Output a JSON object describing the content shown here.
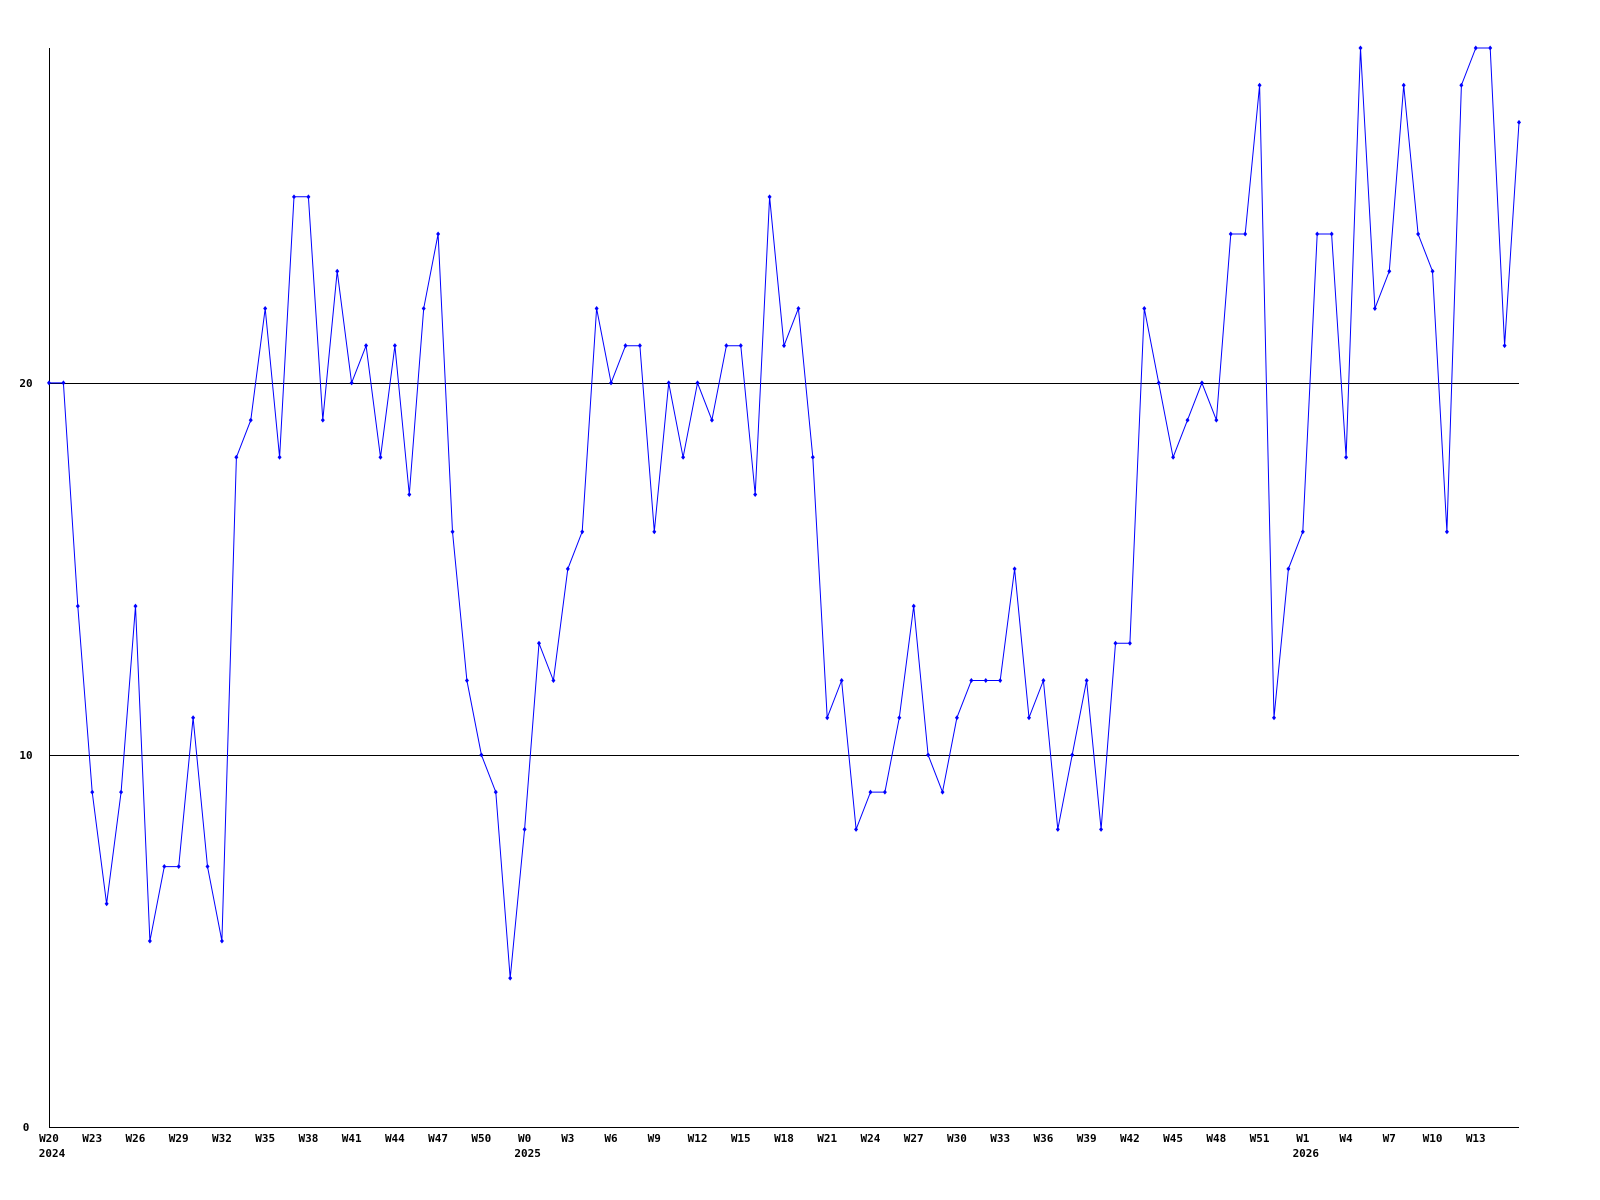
{
  "chart_data": {
    "type": "line",
    "categories": [
      "W20",
      null,
      null,
      "W23",
      null,
      null,
      "W26",
      null,
      null,
      "W29",
      null,
      null,
      "W32",
      null,
      null,
      "W35",
      null,
      null,
      "W38",
      null,
      null,
      "W41",
      null,
      null,
      "W44",
      null,
      null,
      "W47",
      null,
      null,
      "W50",
      null,
      null,
      "W0",
      null,
      null,
      "W3",
      null,
      null,
      "W6",
      null,
      null,
      "W9",
      null,
      null,
      "W12",
      null,
      null,
      "W15",
      null,
      null,
      "W18",
      null,
      null,
      "W21",
      null,
      null,
      "W24",
      null,
      null,
      "W27",
      null,
      null,
      "W30",
      null,
      null,
      "W33",
      null,
      null,
      "W36",
      null,
      null,
      "W39",
      null,
      null,
      "W42",
      null,
      null,
      "W45",
      null,
      null,
      "W48",
      null,
      null,
      "W51",
      null,
      null,
      "W1",
      null,
      null,
      "W4",
      null,
      null,
      "W7",
      null,
      null,
      "W10",
      null,
      null,
      "W13",
      null,
      null,
      null
    ],
    "year_labels": [
      "2024",
      null,
      null,
      null,
      null,
      null,
      null,
      null,
      null,
      null,
      null,
      null,
      null,
      null,
      null,
      null,
      null,
      null,
      null,
      null,
      null,
      null,
      null,
      null,
      null,
      null,
      null,
      null,
      null,
      null,
      null,
      null,
      null,
      "2025",
      null,
      null,
      null,
      null,
      null,
      null,
      null,
      null,
      null,
      null,
      null,
      null,
      null,
      null,
      null,
      null,
      null,
      null,
      null,
      null,
      null,
      null,
      null,
      null,
      null,
      null,
      null,
      null,
      null,
      null,
      null,
      null,
      null,
      null,
      null,
      null,
      null,
      null,
      null,
      null,
      null,
      null,
      null,
      null,
      null,
      null,
      null,
      null,
      null,
      null,
      null,
      null,
      null,
      "2026",
      null,
      null,
      null,
      null,
      null,
      null,
      null,
      null,
      null,
      null,
      null,
      null,
      null,
      null,
      null
    ],
    "series": [
      {
        "color": "#0000ff",
        "values": [
          20,
          20,
          14,
          9,
          6,
          9,
          14,
          5,
          7,
          7,
          11,
          7,
          5,
          18,
          19,
          22,
          18,
          25,
          25,
          19,
          23,
          20,
          21,
          18,
          21,
          17,
          22,
          24,
          16,
          12,
          10,
          9,
          4,
          8,
          13,
          12,
          15,
          16,
          22,
          20,
          21,
          21,
          16,
          20,
          18,
          20,
          19,
          21,
          21,
          17,
          25,
          21,
          22,
          18,
          11,
          12,
          8,
          9,
          9,
          11,
          14,
          10,
          9,
          11,
          12,
          12,
          12,
          15,
          11,
          12,
          8,
          10,
          12,
          8,
          13,
          13,
          22,
          20,
          18,
          19,
          20,
          19,
          24,
          24,
          28,
          11,
          15,
          16,
          24,
          24,
          18,
          29,
          22,
          23,
          28,
          24,
          23,
          16,
          28,
          29,
          29,
          21,
          27
        ]
      }
    ],
    "ylim": [
      0,
      29
    ],
    "yticks": [
      0,
      10,
      20
    ],
    "grid": true
  }
}
